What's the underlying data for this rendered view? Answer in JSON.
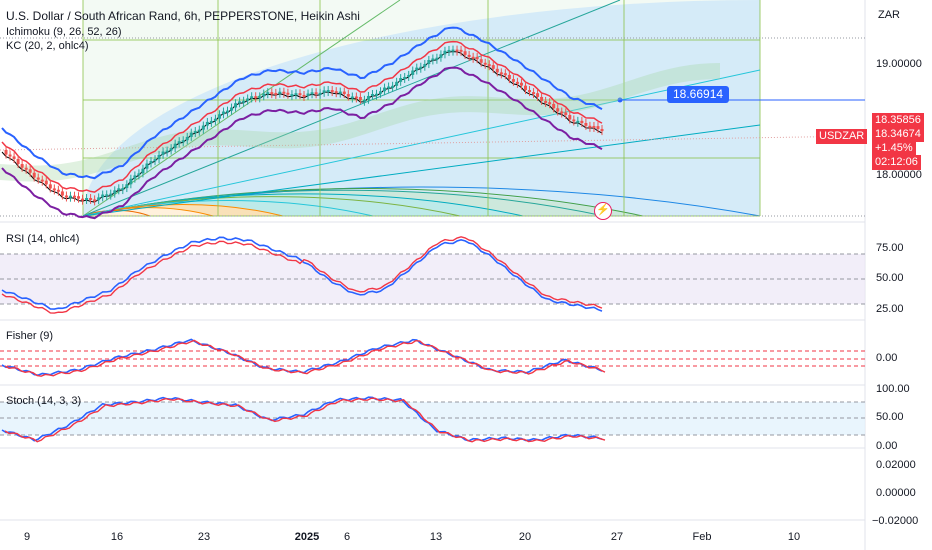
{
  "header": {
    "title": "U.S. Dollar / South African Rand, 6h, PEPPERSTONE, Heikin Ashi",
    "indicator1": "Ichimoku (9, 26, 52, 26)",
    "indicator2": "KC (20, 2, ohlc4)"
  },
  "price_axis": {
    "currency": "ZAR",
    "ticks": [
      "19.00000",
      "18.00000"
    ],
    "symbol_tag": "USDZAR",
    "last_price": "18.35856",
    "price2": "18.34674",
    "change": "+1.45%",
    "countdown": "02:12:06",
    "line_price": "18.66914"
  },
  "panes": {
    "rsi": {
      "label": "RSI (14, ohlc4)",
      "ticks": [
        "75.00",
        "50.00",
        "25.00"
      ]
    },
    "fisher": {
      "label": "Fisher (9)",
      "ticks": [
        "0.00"
      ]
    },
    "stoch": {
      "label": "Stoch (14, 3, 3)",
      "ticks": [
        "100.00",
        "50.00",
        "0.00"
      ]
    },
    "extra": {
      "ticks": [
        "0.02000",
        "0.00000",
        "−0.02000"
      ]
    }
  },
  "time_axis": {
    "labels": [
      "9",
      "16",
      "23",
      "2025",
      "6",
      "13",
      "20",
      "27",
      "Feb",
      "10"
    ]
  },
  "colors": {
    "up": "#26a69a",
    "down": "#ef5350",
    "rsi": "#2962ff",
    "signal": "#f23645",
    "accent": "#2962ff"
  },
  "icons": [
    "lightning-icon"
  ]
}
